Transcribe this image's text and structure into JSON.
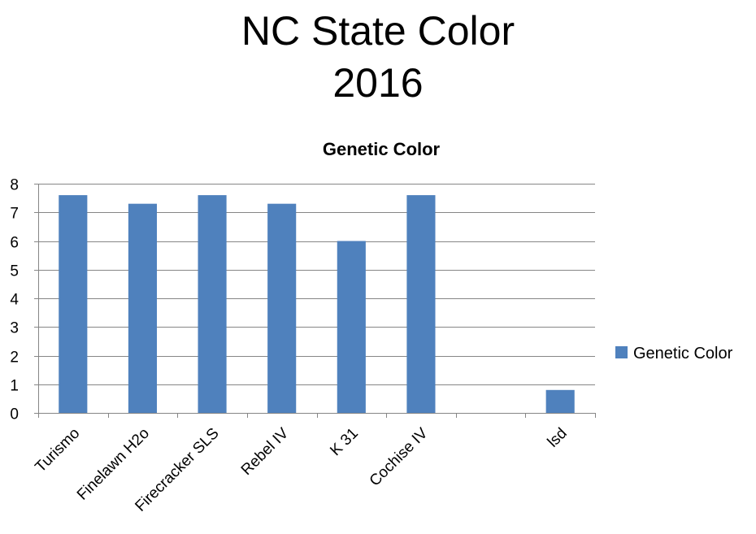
{
  "slide": {
    "title_line1": "NC State Color",
    "title_line2": "2016"
  },
  "chart_data": {
    "type": "bar",
    "title": "Genetic Color",
    "categories": [
      "Turismo",
      "Finelawn H2o",
      "Firecracker SLS",
      "Rebel IV",
      "K 31",
      "Cochise IV",
      "",
      "lsd"
    ],
    "series": [
      {
        "name": "Genetic Color",
        "values": [
          7.6,
          7.3,
          7.6,
          7.3,
          6.0,
          7.6,
          null,
          0.8
        ],
        "color": "#4F81BD"
      }
    ],
    "ylim": [
      0,
      8
    ],
    "yticks": [
      0,
      1,
      2,
      3,
      4,
      5,
      6,
      7,
      8
    ],
    "grid": true,
    "legend": "right",
    "xlabel": "",
    "ylabel": ""
  }
}
